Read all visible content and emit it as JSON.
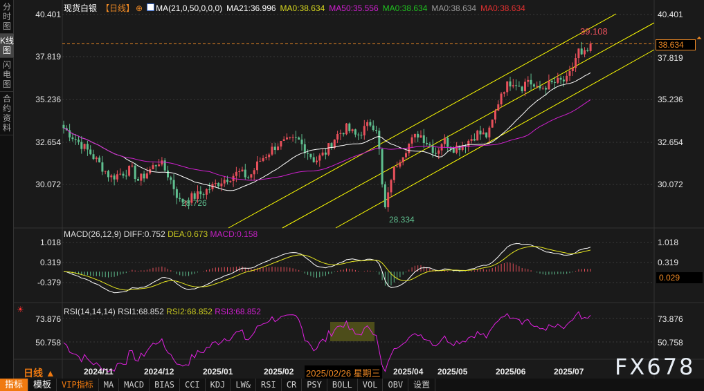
{
  "sidebar": {
    "tabs": [
      "分时图",
      "K线图",
      "闪电图",
      "合约资料"
    ],
    "active": 1
  },
  "header": {
    "symbol": "现货白银",
    "period": "【日线】",
    "ma_params": "MA(21,0,50,0,0,0)",
    "ma21": "MA21:36.996",
    "ma0a": "MA0:38.634",
    "ma50": "MA50:35.556",
    "ma0b": "MA0:38.634",
    "ma0c": "MA0:38.634",
    "ma0d": "MA0:38.634"
  },
  "macd_header": {
    "params": "MACD(26,12,9)",
    "diff": "DIFF:0.752",
    "dea": "DEA:0.673",
    "macd": "MACD:0.158"
  },
  "rsi_header": {
    "params": "RSI(14,14,14)",
    "rsi1": "RSI1:68.852",
    "rsi2": "RSI2:68.852",
    "rsi3": "RSI3:68.852"
  },
  "price_axis": [
    "40.401",
    "37.819",
    "35.236",
    "32.654",
    "30.072"
  ],
  "current_price": "38.634",
  "macd_axis": [
    "1.018",
    "0.319",
    "-0.379"
  ],
  "macd_current": "0.029",
  "rsi_axis": [
    "73.876",
    "50.758"
  ],
  "annotations": {
    "high": "39.108",
    "low1": "28.726",
    "low2": "28.334"
  },
  "x_axis": [
    "2024/11",
    "2024/12",
    "2025/01",
    "2025/02",
    "2025/04",
    "2025/05",
    "2025/06",
    "2025/07"
  ],
  "cursor_date": "2025/02/26 星期三",
  "period_label": "日线 ▲",
  "watermark": "FX678",
  "toolbar": [
    "指标",
    "模板",
    "VIP指标",
    "MA",
    "MACD",
    "BIAS",
    "CCI",
    "KDJ",
    "LW&",
    "RSI",
    "CR",
    "PSY",
    "BOLL",
    "VOL",
    "OBV",
    "设置"
  ],
  "colors": {
    "up": "#e8505b",
    "down": "#5fbf8f",
    "ma21": "#ffffff",
    "ma50": "#d020d0",
    "channel": "#ffff00",
    "rsi": "#e020e0",
    "accent": "#f08a24"
  },
  "chart_data": {
    "type": "candlestick",
    "symbol": "现货白银",
    "period": "日线",
    "closes_approx": [
      33.5,
      32.0,
      30.5,
      31.0,
      30.3,
      31.5,
      30.5,
      29.0,
      29.5,
      30.3,
      30.8,
      30.5,
      31.5,
      32.5,
      32.8,
      31.5,
      32.0,
      33.0,
      33.5,
      33.0,
      33.8,
      33.5,
      30.0,
      28.4,
      30.5,
      31.5,
      32.5,
      33.2,
      32.5,
      32.0,
      32.8,
      32.3,
      32.5,
      33.2,
      33.0,
      34.0,
      35.8,
      36.4,
      36.0,
      36.5,
      35.8,
      36.1,
      36.3,
      36.4,
      37.5,
      38.3,
      37.8,
      38.2,
      38.634
    ],
    "high": 39.108,
    "lows": [
      28.726,
      28.334
    ],
    "ylim": [
      28.0,
      40.6
    ],
    "indicators": [
      "MA21",
      "MA50",
      "MACD(26,12,9)",
      "RSI(14,14,14)"
    ]
  }
}
